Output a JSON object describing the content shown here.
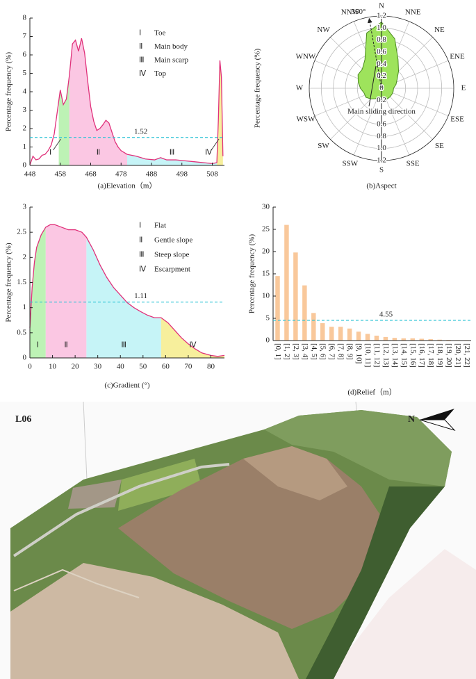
{
  "chart_data": [
    {
      "type": "area",
      "xlabel": "(a)Elevation（m）",
      "ylabel": "Percentage frequency (%)",
      "color": "#e0307a",
      "x": [
        448,
        449,
        450,
        451,
        452,
        453,
        454,
        455,
        456,
        457,
        458,
        459,
        460,
        461,
        462,
        463,
        464,
        465,
        466,
        467,
        468,
        469,
        470,
        471,
        472,
        473,
        474,
        475,
        476,
        477,
        478,
        480,
        483,
        486,
        489,
        491,
        493,
        496,
        499,
        502,
        505,
        508,
        509.5,
        510,
        510.5,
        511,
        511.5
      ],
      "values": [
        0.02,
        0.5,
        0.3,
        0.35,
        0.55,
        0.6,
        0.8,
        1.1,
        1.7,
        2.9,
        4.1,
        3.3,
        3.6,
        4.9,
        6.6,
        6.8,
        6.2,
        6.9,
        6.1,
        4.6,
        3.2,
        2.4,
        1.9,
        2.0,
        2.2,
        2.45,
        2.3,
        1.8,
        1.3,
        1.0,
        0.8,
        0.6,
        0.5,
        0.35,
        0.3,
        0.42,
        0.3,
        0.3,
        0.25,
        0.2,
        0.15,
        0.1,
        0.15,
        2.5,
        5.7,
        4.8,
        0.5
      ],
      "xlim": [
        448,
        512
      ],
      "xticks": [
        448,
        458,
        468,
        478,
        488,
        498,
        508
      ],
      "ylim": [
        0,
        8
      ],
      "yticks": [
        0,
        1,
        2,
        3,
        4,
        5,
        6,
        7,
        8
      ],
      "mean": 1.52,
      "mean_color": "#2ec4d6",
      "zones": [
        {
          "label": "Ⅰ",
          "name": "Toe",
          "start": 457.5,
          "end": 461,
          "color": "#bdf2b5"
        },
        {
          "label": "Ⅱ",
          "name": "Main body",
          "start": 461,
          "end": 480,
          "color": "#fbc7e3"
        },
        {
          "label": "Ⅲ",
          "name": "Main scarp",
          "start": 480,
          "end": 509.5,
          "color": "#c6f4f7"
        },
        {
          "label": "Ⅳ",
          "name": "Top",
          "start": 509.5,
          "end": 512,
          "color": "#f7ef9c"
        }
      ]
    },
    {
      "type": "polar",
      "xlabel": "(b)Aspect",
      "ylabel": "Percentage frequency (%)",
      "color": "#9ee35c",
      "directions": [
        "N",
        "NNE",
        "NE",
        "ENE",
        "E",
        "ESE",
        "SE",
        "SSE",
        "S",
        "SSW",
        "SW",
        "WSW",
        "W",
        "WNW",
        "NW",
        "NNW"
      ],
      "theta": [
        0,
        15,
        30,
        45,
        60,
        75,
        90,
        105,
        120,
        135,
        150,
        165,
        180,
        195,
        210,
        225,
        240,
        255,
        270,
        285,
        300,
        315,
        330,
        345
      ],
      "values": [
        1.1,
        0.85,
        0.55,
        0.4,
        0.3,
        0.25,
        0.2,
        0.2,
        0.2,
        0.2,
        0.2,
        0.2,
        0.15,
        0.15,
        0.2,
        0.25,
        0.3,
        0.3,
        0.35,
        0.4,
        0.45,
        0.45,
        0.55,
        0.95
      ],
      "rlim": [
        0,
        1.2
      ],
      "rticks": [
        0,
        0.2,
        0.4,
        0.6,
        0.8,
        {
          "value": 1,
          "label": "1.0"
        },
        1.2
      ],
      "main_direction": 350,
      "main_direction_label": "350°",
      "annotation": "Main sliding direction"
    },
    {
      "type": "area",
      "xlabel": "(c)Gradient (°)",
      "ylabel": "Percentage frequency (%)",
      "color": "#e0307a",
      "x": [
        0,
        1,
        2,
        3,
        5,
        7,
        9,
        11,
        14,
        17,
        20,
        23,
        25,
        28,
        31,
        34,
        37,
        40,
        43,
        46,
        49,
        52,
        55,
        58,
        61,
        64,
        67,
        70,
        73,
        76,
        80,
        83,
        86
      ],
      "values": [
        0.6,
        1.4,
        1.9,
        2.2,
        2.45,
        2.6,
        2.65,
        2.65,
        2.6,
        2.55,
        2.55,
        2.5,
        2.4,
        2.15,
        1.85,
        1.6,
        1.4,
        1.25,
        1.1,
        1.0,
        0.92,
        0.85,
        0.8,
        0.8,
        0.7,
        0.55,
        0.4,
        0.28,
        0.18,
        0.1,
        0.05,
        0.03,
        0.05
      ],
      "xlim": [
        0,
        86
      ],
      "xticks": [
        0,
        10,
        20,
        30,
        40,
        50,
        60,
        70,
        80
      ],
      "ylim": [
        0,
        3
      ],
      "yticks": [
        0,
        0.5,
        1,
        1.5,
        2,
        2.5,
        3
      ],
      "mean": 1.11,
      "mean_color": "#2ec4d6",
      "zones": [
        {
          "label": "Ⅰ",
          "name": "Flat",
          "start": 0,
          "end": 7,
          "color": "#bdf2b5"
        },
        {
          "label": "Ⅱ",
          "name": "Gentle slope",
          "start": 7,
          "end": 25,
          "color": "#fbc7e3"
        },
        {
          "label": "Ⅲ",
          "name": "Steep slope",
          "start": 25,
          "end": 58,
          "color": "#c6f4f7"
        },
        {
          "label": "Ⅳ",
          "name": "Escarpment",
          "start": 58,
          "end": 86,
          "color": "#f7ef9c"
        }
      ]
    },
    {
      "type": "bar",
      "xlabel": "(d)Relief（m）",
      "ylabel": "Percentage frequency (%)",
      "color": "#f9c89b",
      "categories": [
        "[0, 1]",
        "[1, 2]",
        "[2, 3]",
        "[3, 4]",
        "[4, 5]",
        "[5, 6]",
        "[6, 7]",
        "[7, 8]",
        "[8, 9]",
        "[9, 10]",
        "[10, 11]",
        "[11, 12]",
        "[12, 13]",
        "[13, 14]",
        "[14, 15]",
        "[15, 16]",
        "[16, 17]",
        "[17, 18]",
        "[18, 19]",
        "[19, 20]",
        "[20, 21]",
        "[21, 22]"
      ],
      "values": [
        14.5,
        26,
        19.8,
        12.4,
        6.2,
        3.9,
        3.1,
        3.1,
        2.7,
        2,
        1.5,
        1.1,
        0.8,
        0.6,
        0.5,
        0.5,
        0.4,
        0.3,
        0.2,
        0.15,
        0.1,
        0.1
      ],
      "ylim": [
        0,
        30
      ],
      "yticks": [
        0,
        5,
        10,
        15,
        20,
        25,
        30
      ],
      "mean": 4.55,
      "mean_color": "#2ec4d6"
    }
  ],
  "photo": {
    "label": "L06",
    "north": "N"
  }
}
